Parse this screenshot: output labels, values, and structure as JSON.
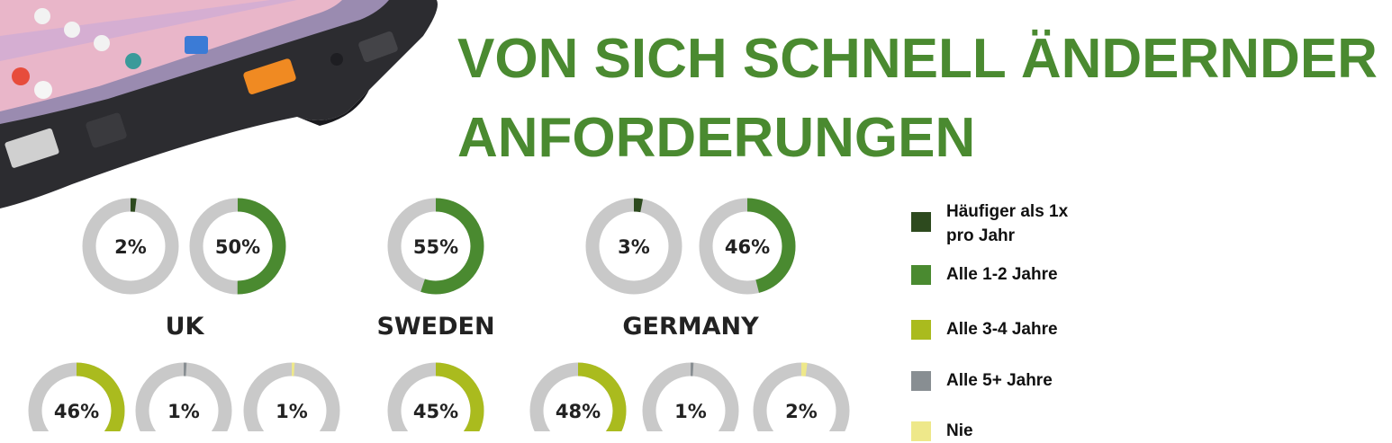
{
  "title": {
    "line1": "VON SICH SCHNELL ÄNDERNDER",
    "line2": "ANFORDERUNGEN"
  },
  "colors": {
    "title": "#4a8a30",
    "track": "#c9c9c9"
  },
  "chart_data": {
    "type": "donut",
    "legend": [
      {
        "label": "Häufiger als 1x pro Jahr",
        "color": "#2d4a1e"
      },
      {
        "label": "Alle 1-2 Jahre",
        "color": "#4a8a30"
      },
      {
        "label": "Alle 3-4 Jahre",
        "color": "#aabb1e"
      },
      {
        "label": "Alle 5+ Jahre",
        "color": "#888e92"
      },
      {
        "label": "Nie",
        "color": "#eee88a"
      }
    ],
    "groups": [
      {
        "country": "UK",
        "values": [
          {
            "category": "Häufiger als 1x pro Jahr",
            "value": 2,
            "label": "2%"
          },
          {
            "category": "Alle 1-2 Jahre",
            "value": 50,
            "label": "50%"
          },
          {
            "category": "Alle 3-4 Jahre",
            "value": 46,
            "label": "46%"
          },
          {
            "category": "Alle 5+ Jahre",
            "value": 1,
            "label": "1%"
          },
          {
            "category": "Nie",
            "value": 1,
            "label": "1%"
          }
        ]
      },
      {
        "country": "SWEDEN",
        "values": [
          {
            "category": "Alle 1-2 Jahre",
            "value": 55,
            "label": "55%"
          },
          {
            "category": "Alle 3-4 Jahre",
            "value": 45,
            "label": "45%"
          }
        ]
      },
      {
        "country": "GERMANY",
        "values": [
          {
            "category": "Häufiger als 1x pro Jahr",
            "value": 3,
            "label": "3%"
          },
          {
            "category": "Alle 1-2 Jahre",
            "value": 46,
            "label": "46%"
          },
          {
            "category": "Alle 3-4 Jahre",
            "value": 48,
            "label": "48%"
          },
          {
            "category": "Alle 5+ Jahre",
            "value": 1,
            "label": "1%"
          },
          {
            "category": "Nie",
            "value": 2,
            "label": "2%"
          }
        ]
      }
    ]
  }
}
